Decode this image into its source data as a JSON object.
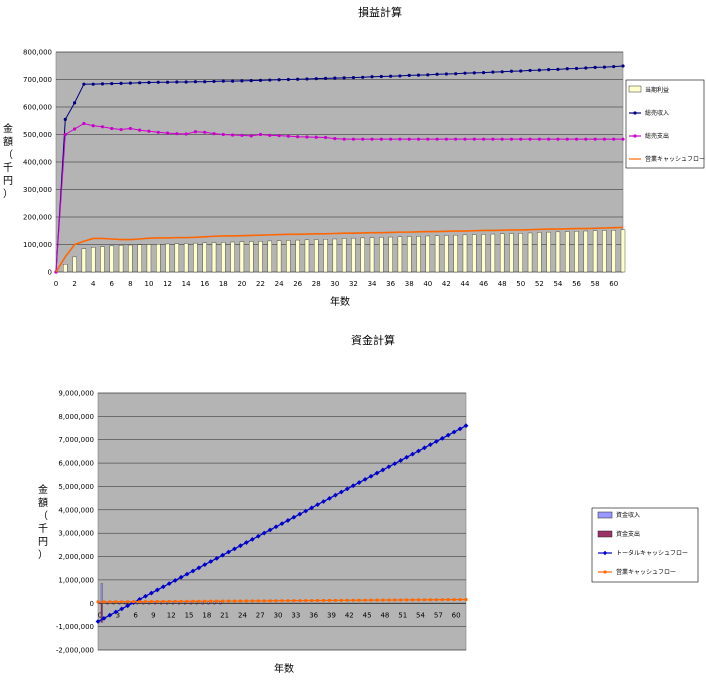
{
  "chart_data": [
    {
      "type": "bar+line",
      "title": "損益計算",
      "xlabel": "年数",
      "ylabel": "金額（千円）",
      "ylabel_chars": [
        "金",
        "額",
        "（",
        "千",
        "円",
        "）"
      ],
      "ylim": [
        0,
        800000
      ],
      "yticks": [
        0,
        100000,
        200000,
        300000,
        400000,
        500000,
        600000,
        700000,
        800000
      ],
      "ytick_labels": [
        "0",
        "100,000",
        "200,000",
        "300,000",
        "400,000",
        "500,000",
        "600,000",
        "700,000",
        "800,000"
      ],
      "xlim": [
        0,
        61
      ],
      "xtick_labels": [
        "0",
        "2",
        "4",
        "6",
        "8",
        "10",
        "12",
        "14",
        "16",
        "18",
        "20",
        "22",
        "24",
        "26",
        "28",
        "30",
        "32",
        "34",
        "36",
        "38",
        "40",
        "42",
        "44",
        "46",
        "48",
        "50",
        "52",
        "54",
        "56",
        "58",
        "60"
      ],
      "grid": true,
      "legend_position": "right",
      "bar_series": {
        "name": "当期利益",
        "color": "#ffffcc",
        "x": [
          1,
          2,
          3,
          4,
          5,
          6,
          7,
          8,
          9,
          10,
          11,
          12,
          13,
          14,
          15,
          16,
          17,
          18,
          19,
          20,
          21,
          22,
          23,
          24,
          25,
          26,
          27,
          28,
          29,
          30,
          31,
          32,
          33,
          34,
          35,
          36,
          37,
          38,
          39,
          40,
          41,
          42,
          43,
          44,
          45,
          46,
          47,
          48,
          49,
          50,
          51,
          52,
          53,
          54,
          55,
          56,
          57,
          58,
          59,
          60,
          61
        ],
        "values": [
          28000,
          55000,
          85000,
          90000,
          92000,
          95000,
          97000,
          98000,
          99000,
          100000,
          101000,
          102000,
          103000,
          104000,
          105000,
          106000,
          107000,
          108000,
          109000,
          110000,
          111000,
          112000,
          113000,
          114000,
          115000,
          116000,
          117000,
          118000,
          119000,
          120000,
          122000,
          123000,
          124000,
          125000,
          126000,
          127000,
          128000,
          129000,
          130000,
          131000,
          132000,
          133000,
          134000,
          135000,
          136000,
          137000,
          138000,
          139000,
          140000,
          141000,
          142000,
          144000,
          145000,
          146000,
          147000,
          148000,
          149000,
          150000,
          151000,
          152000,
          154000
        ]
      },
      "line_series": [
        {
          "name": "総売収入",
          "color": "#000080",
          "x": [
            0,
            1,
            2,
            3,
            4,
            5,
            6,
            7,
            8,
            9,
            10,
            11,
            12,
            13,
            14,
            15,
            16,
            17,
            18,
            19,
            20,
            21,
            22,
            23,
            24,
            25,
            26,
            27,
            28,
            29,
            30,
            31,
            32,
            33,
            34,
            35,
            36,
            37,
            38,
            39,
            40,
            41,
            42,
            43,
            44,
            45,
            46,
            47,
            48,
            49,
            50,
            51,
            52,
            53,
            54,
            55,
            56,
            57,
            58,
            59,
            60,
            61
          ],
          "values": [
            0,
            555000,
            615000,
            683000,
            683000,
            684000,
            685000,
            686000,
            687000,
            688000,
            689000,
            690000,
            690000,
            691000,
            691000,
            692000,
            692000,
            693000,
            694000,
            694000,
            695000,
            696000,
            697000,
            698000,
            699000,
            700000,
            701000,
            702000,
            703000,
            704000,
            705000,
            706000,
            707000,
            708000,
            710000,
            711000,
            712000,
            713000,
            715000,
            716000,
            717000,
            719000,
            720000,
            721000,
            723000,
            724000,
            725000,
            727000,
            728000,
            730000,
            731000,
            733000,
            734000,
            736000,
            737000,
            739000,
            740000,
            742000,
            744000,
            745000,
            747000,
            749000
          ]
        },
        {
          "name": "総売支出",
          "color": "#cc00cc",
          "x": [
            0,
            1,
            2,
            3,
            4,
            5,
            6,
            7,
            8,
            9,
            10,
            11,
            12,
            13,
            14,
            15,
            16,
            17,
            18,
            19,
            20,
            21,
            22,
            23,
            24,
            25,
            26,
            27,
            28,
            29,
            30,
            31,
            32,
            33,
            34,
            35,
            36,
            37,
            38,
            39,
            40,
            41,
            42,
            43,
            44,
            45,
            46,
            47,
            48,
            49,
            50,
            51,
            52,
            53,
            54,
            55,
            56,
            57,
            58,
            59,
            60,
            61
          ],
          "values": [
            0,
            500000,
            520000,
            540000,
            532000,
            528000,
            522000,
            518000,
            522000,
            516000,
            512000,
            508000,
            505000,
            503000,
            502000,
            510000,
            508000,
            503000,
            500000,
            498000,
            497000,
            495000,
            500000,
            497000,
            496000,
            494000,
            492000,
            491000,
            490000,
            489000,
            485000,
            483000,
            483000,
            483000,
            483000,
            483000,
            483000,
            483000,
            483000,
            483000,
            483000,
            483000,
            483000,
            483000,
            483000,
            483000,
            483000,
            483000,
            483000,
            483000,
            483000,
            483000,
            483000,
            483000,
            483000,
            483000,
            483000,
            483000,
            483000,
            483000,
            483000,
            483000
          ]
        },
        {
          "name": "営業キャッシュフロー",
          "color": "#ff6600",
          "x": [
            0,
            1,
            2,
            3,
            4,
            5,
            6,
            7,
            8,
            9,
            10,
            11,
            12,
            13,
            14,
            15,
            16,
            17,
            18,
            19,
            20,
            21,
            22,
            23,
            24,
            25,
            26,
            27,
            28,
            29,
            30,
            31,
            32,
            33,
            34,
            35,
            36,
            37,
            38,
            39,
            40,
            41,
            42,
            43,
            44,
            45,
            46,
            47,
            48,
            49,
            50,
            51,
            52,
            53,
            54,
            55,
            56,
            57,
            58,
            59,
            60,
            61
          ],
          "values": [
            0,
            55000,
            100000,
            112000,
            122000,
            122000,
            120000,
            118000,
            118000,
            120000,
            123000,
            124000,
            124000,
            125000,
            125000,
            126000,
            128000,
            130000,
            131000,
            131000,
            132000,
            133000,
            134000,
            135000,
            136000,
            137000,
            137000,
            138000,
            139000,
            139000,
            140000,
            141000,
            141000,
            142000,
            143000,
            143000,
            144000,
            145000,
            145000,
            146000,
            147000,
            147000,
            148000,
            149000,
            149000,
            150000,
            151000,
            151000,
            152000,
            153000,
            153000,
            154000,
            155000,
            156000,
            156000,
            157000,
            158000,
            158000,
            159000,
            160000,
            161000,
            162000
          ]
        }
      ]
    },
    {
      "type": "bar+line",
      "title": "資金計算",
      "xlabel": "年数",
      "ylabel": "金額（千円）",
      "ylabel_chars": [
        "金",
        "額",
        "（",
        "千",
        "円",
        "）"
      ],
      "ylim": [
        -2000000,
        9000000
      ],
      "yticks": [
        -2000000,
        -1000000,
        0,
        1000000,
        2000000,
        3000000,
        4000000,
        5000000,
        6000000,
        7000000,
        8000000,
        9000000
      ],
      "ytick_labels": [
        "-2,000,000",
        "-1,000,000",
        "0",
        "1,000,000",
        "2,000,000",
        "3,000,000",
        "4,000,000",
        "5,000,000",
        "6,000,000",
        "7,000,000",
        "8,000,000",
        "9,000,000"
      ],
      "xlim": [
        0,
        62
      ],
      "xtick_labels": [
        "0",
        "3",
        "6",
        "9",
        "12",
        "15",
        "18",
        "21",
        "24",
        "27",
        "30",
        "33",
        "36",
        "39",
        "42",
        "45",
        "48",
        "51",
        "54",
        "57",
        "60"
      ],
      "grid": true,
      "legend_position": "right",
      "bar_series": [
        {
          "name": "資金収入",
          "color": "#9999ff",
          "x": [
            0,
            1,
            2,
            3,
            4,
            5,
            6,
            7,
            8,
            9,
            10,
            11,
            12,
            13,
            14,
            15,
            16,
            17,
            18,
            19,
            20
          ],
          "values": [
            850000,
            60000,
            60000,
            60000,
            60000,
            60000,
            60000,
            60000,
            60000,
            60000,
            60000,
            60000,
            60000,
            60000,
            60000,
            60000,
            60000,
            60000,
            60000,
            60000,
            60000
          ]
        },
        {
          "name": "資金支出",
          "color": "#993366",
          "x": [
            0,
            1,
            2,
            3,
            4,
            5,
            6,
            7,
            8,
            9,
            10,
            11,
            12,
            13,
            14,
            15,
            16,
            17,
            18,
            19,
            20
          ],
          "values": [
            -820000,
            -40000,
            -40000,
            -40000,
            -40000,
            -40000,
            -40000,
            -40000,
            -40000,
            -40000,
            -40000,
            -40000,
            -40000,
            -40000,
            -40000,
            -40000,
            -40000,
            -40000,
            -40000,
            -40000,
            -40000
          ]
        }
      ],
      "line_series": [
        {
          "name": "トータルキャッシュフロー",
          "color": "#0000cc",
          "x_start": 0,
          "x_end": 62,
          "y_start": -780000,
          "y_end": 7600000,
          "points": 63
        },
        {
          "name": "営業キャッシュフロー",
          "color": "#ff6600",
          "x_start": 0,
          "x_end": 62,
          "y_start": 60000,
          "y_end": 160000,
          "points": 63
        }
      ]
    }
  ]
}
